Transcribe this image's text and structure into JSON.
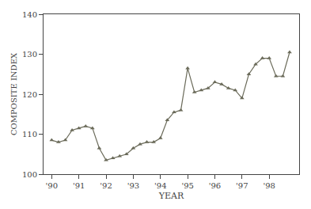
{
  "chart_data": {
    "type": "line",
    "xlabel": "YEAR",
    "ylabel": "COMPOSITE INDEX",
    "x": [
      1990.0,
      1990.25,
      1990.5,
      1990.75,
      1991.0,
      1991.25,
      1991.5,
      1991.75,
      1992.0,
      1992.25,
      1992.5,
      1992.75,
      1993.0,
      1993.25,
      1993.5,
      1993.75,
      1994.0,
      1994.25,
      1994.5,
      1994.75,
      1995.0,
      1995.25,
      1995.5,
      1995.75,
      1996.0,
      1996.25,
      1996.5,
      1996.75,
      1997.0,
      1997.25,
      1997.5,
      1997.75,
      1998.0,
      1998.25,
      1998.5,
      1998.75
    ],
    "values": [
      108.5,
      108.0,
      108.5,
      111.0,
      111.5,
      112.0,
      111.5,
      106.5,
      103.5,
      104.0,
      104.5,
      105.0,
      106.5,
      107.5,
      108.0,
      108.0,
      109.0,
      113.5,
      115.5,
      116.0,
      126.5,
      120.5,
      121.0,
      121.5,
      123.0,
      122.5,
      121.5,
      121.0,
      119.0,
      125.0,
      127.5,
      129.0,
      129.0,
      124.5,
      124.5,
      130.5
    ],
    "color": "#6b6b5a",
    "marker": "triangle-up",
    "line_style": "solid",
    "xlim": [
      1989.7,
      1999.1
    ],
    "ylim": [
      100,
      140
    ],
    "xticks": [
      {
        "value": 1990,
        "label": "'90"
      },
      {
        "value": 1991,
        "label": "'91"
      },
      {
        "value": 1992,
        "label": "'92"
      },
      {
        "value": 1993,
        "label": "'93"
      },
      {
        "value": 1994,
        "label": "'94"
      },
      {
        "value": 1995,
        "label": "'95"
      },
      {
        "value": 1996,
        "label": "'96"
      },
      {
        "value": 1997,
        "label": "'97"
      },
      {
        "value": 1998,
        "label": "'98"
      }
    ],
    "yticks": [
      100,
      110,
      120,
      130,
      140
    ],
    "grid": false
  }
}
